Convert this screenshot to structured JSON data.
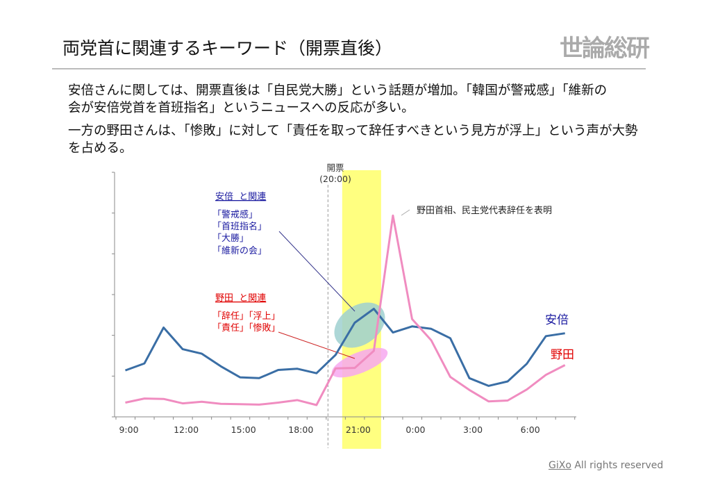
{
  "title": "両党首に関連するキーワード（開票直後）",
  "logo_text": "世論総研",
  "body_lines": [
    "安倍さんに関しては、開票直後は「自民党大勝」という話題が増加。「韓国が警戒感」「維新の",
    "会が安倍党首を首班指名」というニュースへの反応が多い。",
    "一方の野田さんは、「惨敗」に対して「責任を取って辞任すべきという見方が浮上」という声が大勢",
    "を占める。"
  ],
  "footer": {
    "brand": "GiXo",
    "text": " All rights reserved"
  },
  "chart_data": {
    "type": "line",
    "x": [
      "9:00",
      "10:00",
      "11:00",
      "12:00",
      "13:00",
      "14:00",
      "15:00",
      "16:00",
      "17:00",
      "18:00",
      "19:00",
      "20:00",
      "21:00",
      "22:00",
      "23:00",
      "0:00",
      "1:00",
      "2:00",
      "3:00",
      "4:00",
      "5:00",
      "6:00",
      "7:00",
      "8:00"
    ],
    "x_tick_labels": [
      "9:00",
      "12:00",
      "15:00",
      "18:00",
      "21:00",
      "0:00",
      "3:00",
      "6:00"
    ],
    "ylim": [
      0,
      6
    ],
    "y_tick_labels_shown": false,
    "grid": false,
    "series": [
      {
        "name": "安倍",
        "color": "#3a6ea5",
        "values": [
          1.14,
          1.31,
          2.19,
          1.66,
          1.55,
          1.24,
          0.97,
          0.95,
          1.15,
          1.18,
          1.07,
          1.52,
          2.31,
          2.65,
          2.07,
          2.22,
          2.16,
          1.93,
          0.95,
          0.76,
          0.87,
          1.3,
          1.98,
          2.05
        ]
      },
      {
        "name": "野田",
        "color": "#f08cc0",
        "values": [
          0.35,
          0.45,
          0.44,
          0.33,
          0.37,
          0.32,
          0.31,
          0.3,
          0.35,
          0.41,
          0.29,
          1.19,
          1.2,
          1.62,
          4.94,
          2.4,
          1.88,
          0.98,
          0.66,
          0.38,
          0.4,
          0.67,
          1.03,
          1.27
        ]
      }
    ],
    "series_label_colors": {
      "abe": "#1a1aa0",
      "noda": "#e00000"
    },
    "highlight_band": {
      "from": "20:00",
      "to": "22:00",
      "color": "#ffff80"
    },
    "event_marker": {
      "at": "20:00",
      "label_line1": "開票",
      "label_line2": "(20:00)"
    },
    "annotations": {
      "abe_heading": "安倍  と関連",
      "abe_keywords": [
        "「警戒感」",
        "「首班指名」",
        "「大勝」",
        "「維新の会」"
      ],
      "noda_heading": "野田  と関連",
      "noda_keywords": [
        "「辞任」「浮上」",
        "「責任」「惨敗」"
      ],
      "peak_note": "野田首相、民主党代表辞任を表明"
    }
  }
}
